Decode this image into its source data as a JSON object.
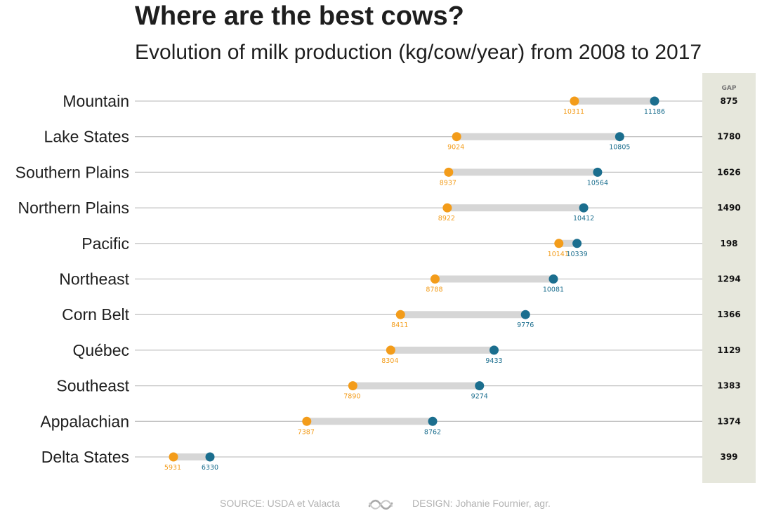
{
  "title": "Where are the best cows?",
  "subtitle": "Evolution of milk production (kg/cow/year) from 2008 to 2017",
  "footer": {
    "source": "SOURCE: USDA et Valacta",
    "design": "DESIGN: Johanie Fournier, agr.",
    "logo_icon": "cow-logo-icon"
  },
  "colors": {
    "start": "#f39c1a",
    "end": "#1b6e8e",
    "bar": "#d6d6d6",
    "gridline": "#c4c4c4",
    "gap_panel": "#e6e7dc"
  },
  "chart_data": {
    "type": "dumbbell",
    "title": "Where are the best cows?",
    "subtitle": "Evolution of milk production (kg/cow/year) from 2008 to 2017",
    "gap_header": "GAP",
    "categories": [
      "Mountain",
      "Lake States",
      "Southern Plains",
      "Northern Plains",
      "Pacific",
      "Northeast",
      "Corn Belt",
      "Québec",
      "Southeast",
      "Appalachian",
      "Delta States"
    ],
    "start_values": [
      10311,
      9024,
      8937,
      8922,
      10141,
      8788,
      8411,
      8304,
      7890,
      7387,
      5931
    ],
    "end_values": [
      11186,
      10805,
      10564,
      10412,
      10339,
      10081,
      9776,
      9433,
      9274,
      8762,
      6330
    ],
    "gap": [
      875,
      1780,
      1626,
      1490,
      198,
      1294,
      1366,
      1129,
      1383,
      1374,
      399
    ],
    "grid": false
  }
}
